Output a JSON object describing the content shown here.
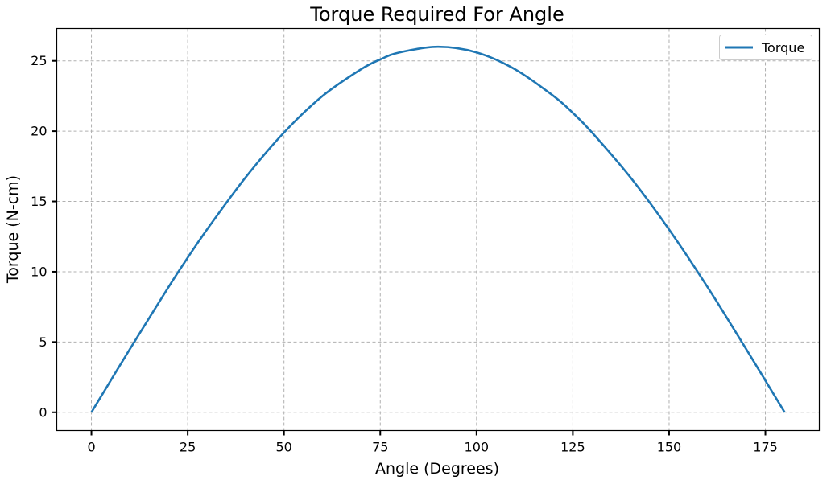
{
  "chart_data": {
    "type": "line",
    "title": "Torque Required For Angle",
    "xlabel": "Angle (Degrees)",
    "ylabel": "Torque (N-cm)",
    "xlim": [
      -9,
      189
    ],
    "ylim": [
      -1.3,
      27.3
    ],
    "xticks": [
      0,
      25,
      50,
      75,
      100,
      125,
      150,
      175
    ],
    "yticks": [
      0,
      5,
      10,
      15,
      20,
      25
    ],
    "grid": true,
    "legend_position": "top-right",
    "series": [
      {
        "name": "Torque",
        "color": "#1f77b4",
        "x": [
          0,
          10,
          20,
          25,
          30,
          40,
          50,
          60,
          70,
          75,
          80,
          90,
          100,
          110,
          120,
          125,
          130,
          140,
          150,
          160,
          170,
          180
        ],
        "y": [
          0,
          4.5,
          8.9,
          11.0,
          13.0,
          16.7,
          19.9,
          22.5,
          24.4,
          25.1,
          25.6,
          26.0,
          25.6,
          24.4,
          22.5,
          21.3,
          19.9,
          16.7,
          13.0,
          8.9,
          4.5,
          0
        ]
      }
    ]
  }
}
